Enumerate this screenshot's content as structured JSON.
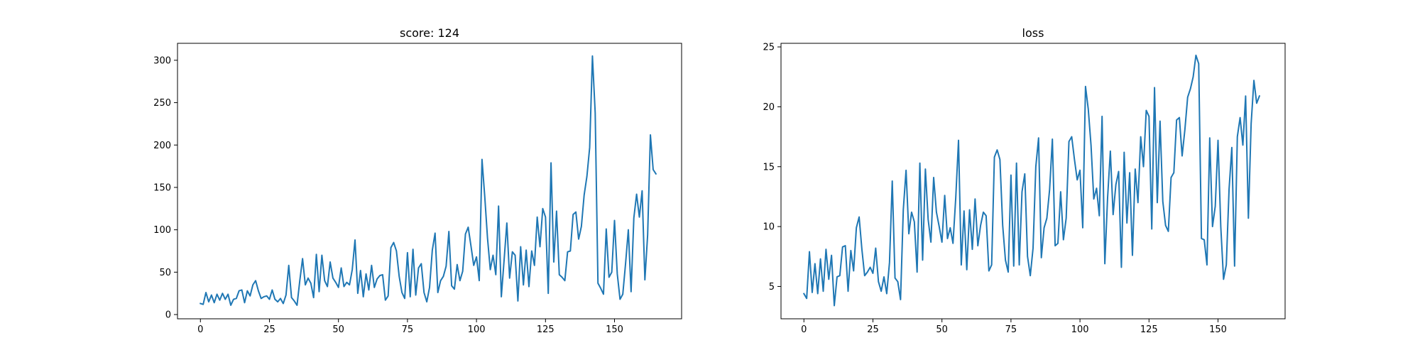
{
  "figure": {
    "background": "#ffffff",
    "line_color": "#1f77b4"
  },
  "chart_data": [
    {
      "type": "line",
      "title": "score: 124",
      "xlabel": "",
      "ylabel": "",
      "xlim": [
        -8.3,
        174.3
      ],
      "ylim": [
        -5,
        320
      ],
      "xticks": [
        0,
        25,
        50,
        75,
        100,
        125,
        150
      ],
      "yticks": [
        0,
        50,
        100,
        150,
        200,
        250,
        300
      ],
      "grid": false,
      "series": [
        {
          "x_start": 0,
          "values": [
            13,
            12,
            26,
            15,
            23,
            14,
            24,
            17,
            25,
            18,
            24,
            11,
            18,
            19,
            28,
            29,
            14,
            28,
            22,
            35,
            40,
            28,
            19,
            21,
            22,
            18,
            29,
            18,
            15,
            19,
            13,
            23,
            58,
            20,
            16,
            11,
            40,
            66,
            35,
            43,
            37,
            20,
            71,
            27,
            70,
            40,
            33,
            62,
            43,
            38,
            32,
            55,
            33,
            38,
            35,
            53,
            88,
            25,
            52,
            21,
            48,
            29,
            58,
            32,
            42,
            46,
            47,
            17,
            22,
            79,
            85,
            75,
            45,
            26,
            19,
            73,
            21,
            77,
            23,
            55,
            60,
            26,
            15,
            32,
            76,
            96,
            26,
            40,
            45,
            57,
            98,
            34,
            30,
            59,
            40,
            51,
            95,
            103,
            81,
            58,
            68,
            40,
            183,
            139,
            90,
            53,
            70,
            47,
            128,
            21,
            64,
            108,
            43,
            74,
            70,
            16,
            80,
            35,
            76,
            33,
            75,
            58,
            115,
            80,
            125,
            115,
            25,
            179,
            62,
            122,
            47,
            44,
            40,
            74,
            75,
            118,
            121,
            89,
            104,
            141,
            163,
            197,
            305,
            238,
            37,
            31,
            24,
            101,
            44,
            50,
            111,
            48,
            18,
            24,
            60,
            100,
            27,
            114,
            142,
            115,
            146,
            41,
            94,
            212,
            171,
            166
          ]
        }
      ]
    },
    {
      "type": "line",
      "title": "loss",
      "xlabel": "",
      "ylabel": "",
      "xlim": [
        -8.3,
        174.3
      ],
      "ylim": [
        2.3,
        25.3
      ],
      "xticks": [
        0,
        25,
        50,
        75,
        100,
        125,
        150
      ],
      "yticks": [
        5,
        10,
        15,
        20,
        25
      ],
      "grid": false,
      "series": [
        {
          "x_start": 0,
          "values": [
            4.4,
            4.0,
            7.9,
            4.5,
            6.9,
            4.4,
            7.3,
            4.6,
            8.1,
            5.6,
            7.6,
            3.4,
            5.8,
            5.9,
            8.3,
            8.4,
            4.6,
            8.0,
            6.3,
            9.9,
            10.8,
            8.1,
            5.9,
            6.2,
            6.6,
            6.1,
            8.2,
            5.4,
            4.6,
            5.8,
            4.4,
            7.0,
            13.8,
            5.7,
            5.4,
            3.9,
            11.4,
            14.7,
            9.4,
            11.2,
            10.4,
            6.2,
            15.3,
            7.2,
            14.8,
            10.6,
            8.7,
            14.1,
            11.2,
            10.0,
            8.7,
            12.6,
            9.0,
            9.9,
            8.6,
            12.4,
            17.2,
            6.8,
            11.3,
            6.4,
            11.4,
            8.1,
            12.3,
            8.4,
            10.1,
            11.2,
            10.9,
            6.3,
            6.8,
            15.8,
            16.4,
            15.6,
            10.1,
            7.2,
            6.2,
            14.3,
            6.7,
            15.3,
            6.8,
            12.9,
            14.4,
            7.5,
            5.9,
            8.2,
            15.0,
            17.4,
            7.4,
            9.9,
            10.7,
            13.1,
            17.3,
            8.4,
            8.6,
            12.9,
            8.9,
            10.7,
            17.1,
            17.5,
            15.6,
            13.9,
            14.7,
            9.9,
            21.7,
            19.8,
            16.8,
            12.3,
            13.2,
            10.9,
            19.2,
            6.9,
            12.4,
            16.3,
            11.0,
            13.5,
            14.6,
            6.6,
            16.2,
            10.3,
            14.5,
            7.6,
            14.8,
            12.0,
            17.5,
            15.0,
            19.7,
            19.2,
            9.8,
            21.6,
            12.0,
            18.8,
            12.1,
            10.1,
            9.6,
            14.1,
            14.5,
            18.9,
            19.1,
            15.9,
            18.1,
            20.8,
            21.5,
            22.5,
            24.3,
            23.6,
            9.0,
            8.9,
            6.8,
            17.4,
            10.0,
            11.7,
            17.2,
            10.0,
            5.6,
            6.8,
            13.1,
            16.6,
            6.7,
            17.5,
            19.1,
            16.8,
            20.9,
            10.7,
            18.6,
            22.2,
            20.3,
            20.9
          ]
        }
      ]
    }
  ]
}
